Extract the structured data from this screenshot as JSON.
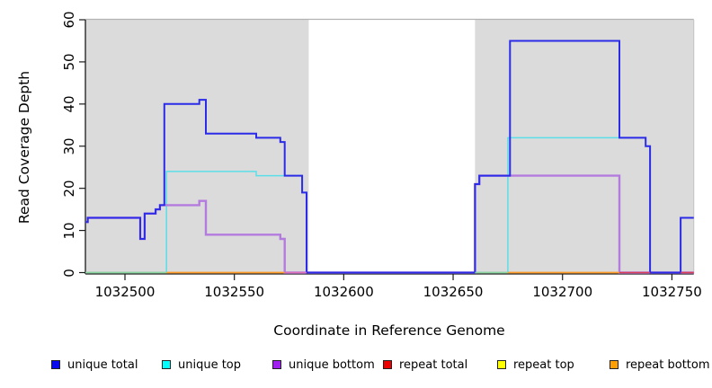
{
  "legend": {
    "items": [
      {
        "label": "unique total",
        "color": "#0A0AEE"
      },
      {
        "label": "unique top",
        "color": "#00FFFF"
      },
      {
        "label": "unique bottom",
        "color": "#A020F0"
      },
      {
        "label": "repeat total",
        "color": "#EE0000"
      },
      {
        "label": "repeat top",
        "color": "#FFFF00"
      },
      {
        "label": "repeat bottom",
        "color": "#FFA000"
      }
    ]
  },
  "chart_data": {
    "type": "line",
    "subtype": "step-post-coverage",
    "title": "",
    "xlabel": "Coordinate in Reference Genome",
    "ylabel": "Read Coverage Depth",
    "xlim": [
      1032482,
      1032760
    ],
    "ylim": [
      0,
      60
    ],
    "grid": false,
    "legend_position": "bottom",
    "x_ticks": {
      "labels": [
        "1032500",
        "1032550",
        "1032600",
        "1032650",
        "1032700",
        "1032750"
      ],
      "values": [
        1032500,
        1032550,
        1032600,
        1032650,
        1032700,
        1032750
      ]
    },
    "y_ticks": {
      "labels": [
        "0",
        "10",
        "20",
        "30",
        "40",
        "50",
        "60"
      ],
      "values": [
        0,
        10,
        20,
        30,
        40,
        50,
        60
      ]
    },
    "background_regions": [
      {
        "x0": 1032482,
        "x1": 1032584,
        "fill": "#DBDBDB"
      },
      {
        "x0": 1032660,
        "x1": 1032760,
        "fill": "#DBDBDB"
      }
    ],
    "series": [
      {
        "name": "repeat top",
        "color": "#F0F030",
        "width": 1.2,
        "points": [
          [
            1032482,
            0
          ]
        ]
      },
      {
        "name": "repeat total",
        "color": "#DC3A55",
        "width": 1.2,
        "points": [
          [
            1032482,
            0
          ]
        ]
      },
      {
        "name": "repeat bottom",
        "color": "#FF9D26",
        "width": 1.2,
        "points": [
          [
            1032482,
            0
          ]
        ]
      },
      {
        "name": "unique top",
        "color": "#5CDEE8",
        "width": 1.5,
        "points": [
          [
            1032482,
            0
          ],
          [
            1032519,
            24
          ],
          [
            1032560,
            23
          ],
          [
            1032581,
            19
          ],
          [
            1032583,
            0
          ],
          [
            1032675,
            32
          ],
          [
            1032738,
            30
          ],
          [
            1032740,
            0
          ]
        ]
      },
      {
        "name": "unique bottom",
        "color": "#B47BDE",
        "width": 2.4,
        "points": [
          [
            1032482,
            12
          ],
          [
            1032483,
            13
          ],
          [
            1032507,
            8
          ],
          [
            1032509,
            14
          ],
          [
            1032514,
            15
          ],
          [
            1032516,
            16
          ],
          [
            1032534,
            17
          ],
          [
            1032537,
            9
          ],
          [
            1032571,
            8
          ],
          [
            1032573,
            0
          ],
          [
            1032660,
            21
          ],
          [
            1032662,
            23
          ],
          [
            1032726,
            0
          ]
        ]
      },
      {
        "name": "unique total",
        "color": "#2B2BE8",
        "width": 2,
        "points": [
          [
            1032482,
            12
          ],
          [
            1032483,
            13
          ],
          [
            1032507,
            8
          ],
          [
            1032509,
            14
          ],
          [
            1032514,
            15
          ],
          [
            1032516,
            16
          ],
          [
            1032518,
            40
          ],
          [
            1032534,
            41
          ],
          [
            1032537,
            33
          ],
          [
            1032560,
            32
          ],
          [
            1032571,
            31
          ],
          [
            1032573,
            23
          ],
          [
            1032581,
            19
          ],
          [
            1032583,
            0
          ],
          [
            1032660,
            21
          ],
          [
            1032662,
            23
          ],
          [
            1032676,
            55
          ],
          [
            1032726,
            32
          ],
          [
            1032738,
            30
          ],
          [
            1032740,
            0
          ],
          [
            1032754,
            13
          ]
        ]
      }
    ],
    "baseline_segments": [
      {
        "x0": 1032482,
        "x1": 1032519,
        "color": "#8CD6A0"
      },
      {
        "x0": 1032519,
        "x1": 1032573,
        "color": "#FF9D26"
      },
      {
        "x0": 1032573,
        "x1": 1032583,
        "color": "#E070B8"
      },
      {
        "x0": 1032660,
        "x1": 1032675,
        "color": "#8CD6A0"
      },
      {
        "x0": 1032675,
        "x1": 1032726,
        "color": "#FF9D26"
      },
      {
        "x0": 1032726,
        "x1": 1032740,
        "color": "#DC4058"
      },
      {
        "x0": 1032754,
        "x1": 1032760,
        "color": "#DC4058"
      }
    ]
  }
}
